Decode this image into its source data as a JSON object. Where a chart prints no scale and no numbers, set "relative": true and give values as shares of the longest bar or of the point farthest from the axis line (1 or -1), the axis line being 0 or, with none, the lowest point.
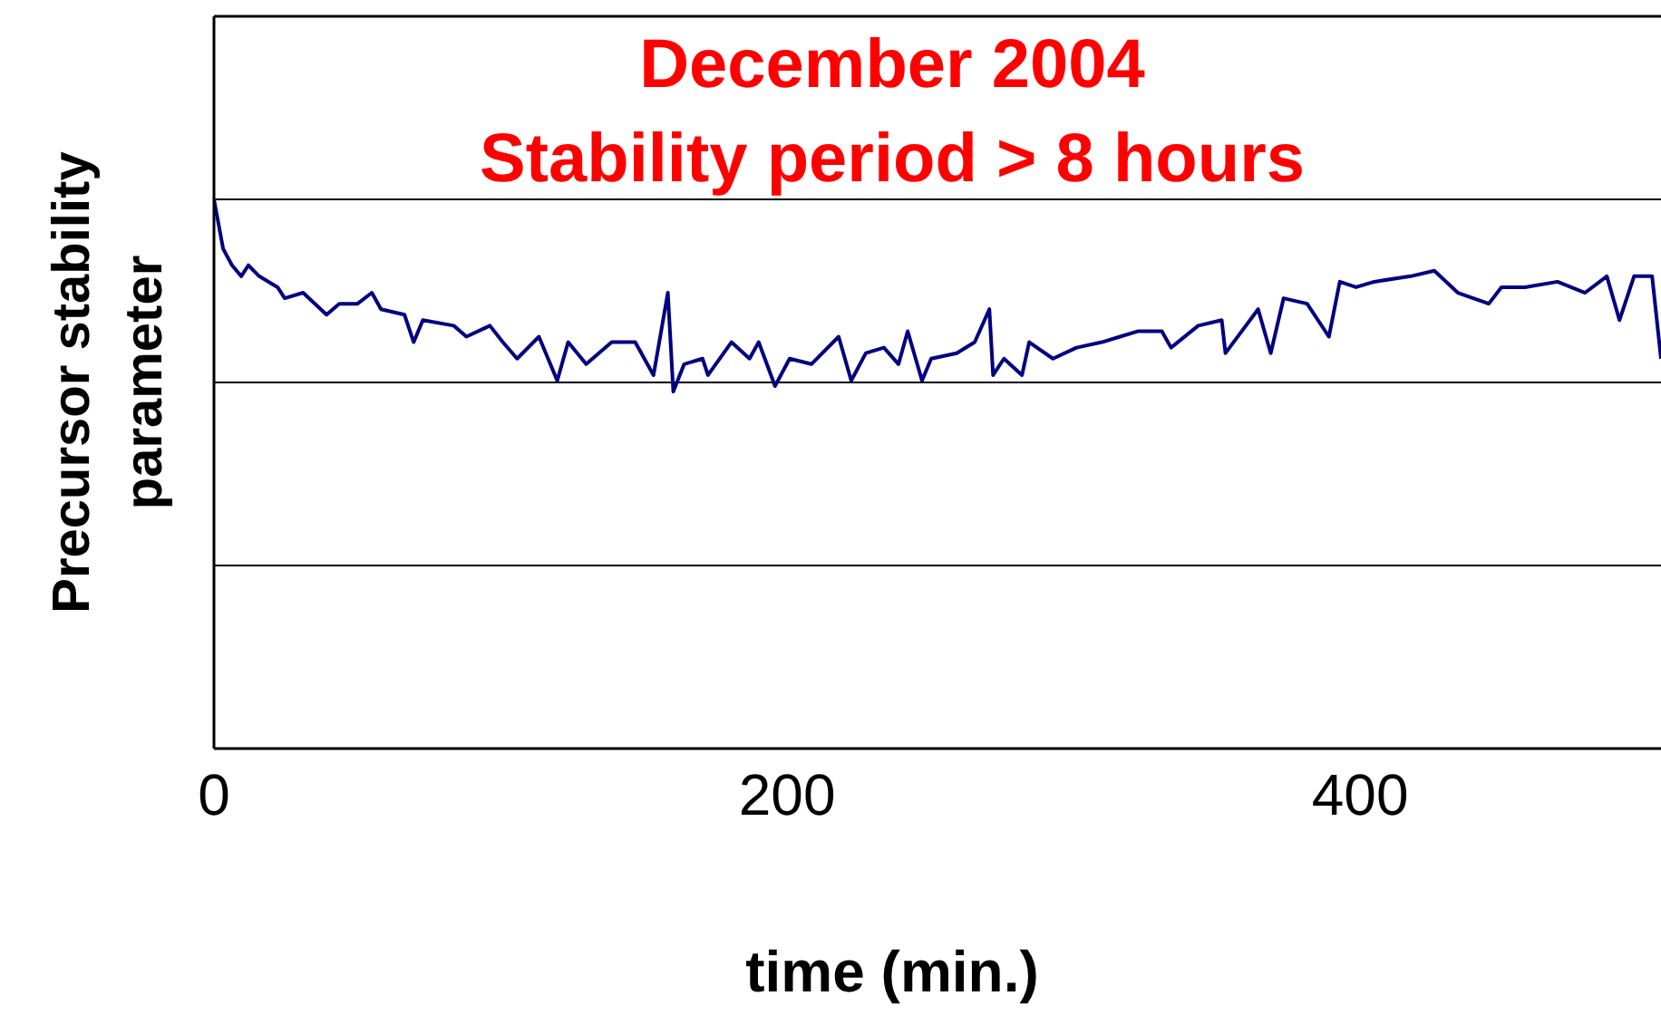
{
  "chart_data": {
    "type": "line",
    "title": "December 2004",
    "subtitle": "Stability period > 8 hours",
    "xlabel": "time (min.)",
    "ylabel": "Precursor stability parameter",
    "relative": true,
    "ref_lines": [
      {
        "axis": "y",
        "value": 0.3333,
        "color": "#000000"
      },
      {
        "axis": "y",
        "value": 0.6667,
        "color": "#000000"
      },
      {
        "axis": "y",
        "value": 1,
        "color": "#000000"
      }
    ],
    "legend": false,
    "marker": "none",
    "line_style": "solid",
    "xlim": [
      0,
      505
    ],
    "xticks": [
      0,
      200,
      400
    ],
    "x": [
      0,
      3.2,
      6.3,
      9.5,
      12.0,
      15.8,
      22.2,
      24.7,
      31.1,
      39.3,
      43.7,
      50.1,
      55.1,
      58.3,
      66.5,
      69.7,
      72.9,
      83.7,
      88.1,
      96.3,
      100.8,
      105.8,
      113.4,
      119.8,
      123.6,
      129.9,
      138.8,
      147.0,
      153.4,
      158.4,
      160.3,
      164.1,
      170.5,
      172.4,
      180.6,
      186.9,
      190.1,
      195.8,
      200.9,
      208.5,
      218.0,
      222.4,
      227.5,
      233.8,
      238.9,
      242.1,
      247.1,
      250.3,
      259.2,
      265.5,
      270.6,
      271.9,
      275.7,
      282.0,
      284.5,
      292.8,
      301.0,
      309.9,
      316.2,
      322.6,
      330.8,
      334.0,
      343.5,
      351.7,
      353.0,
      364.4,
      368.8,
      373.3,
      381.5,
      389.1,
      392.9,
      398.6,
      404.9,
      417.6,
      425.9,
      434.1,
      444.9,
      449.3,
      457.5,
      468.9,
      478.5,
      486.1,
      490.5,
      495.6,
      501.9,
      505.0
    ],
    "series": [
      {
        "color": "#000080",
        "values": [
          1.0,
          0.91,
          0.88,
          0.86,
          0.88,
          0.86,
          0.84,
          0.82,
          0.83,
          0.79,
          0.81,
          0.81,
          0.83,
          0.8,
          0.79,
          0.74,
          0.78,
          0.77,
          0.75,
          0.77,
          0.74,
          0.71,
          0.75,
          0.67,
          0.74,
          0.7,
          0.74,
          0.74,
          0.68,
          0.83,
          0.65,
          0.7,
          0.71,
          0.68,
          0.74,
          0.71,
          0.74,
          0.66,
          0.71,
          0.7,
          0.75,
          0.67,
          0.72,
          0.73,
          0.7,
          0.76,
          0.67,
          0.71,
          0.72,
          0.74,
          0.8,
          0.68,
          0.71,
          0.68,
          0.74,
          0.71,
          0.73,
          0.74,
          0.75,
          0.76,
          0.76,
          0.73,
          0.77,
          0.78,
          0.72,
          0.8,
          0.72,
          0.82,
          0.81,
          0.75,
          0.85,
          0.84,
          0.85,
          0.86,
          0.87,
          0.83,
          0.81,
          0.84,
          0.84,
          0.85,
          0.83,
          0.86,
          0.78,
          0.86,
          0.86,
          0.71
        ]
      }
    ]
  }
}
